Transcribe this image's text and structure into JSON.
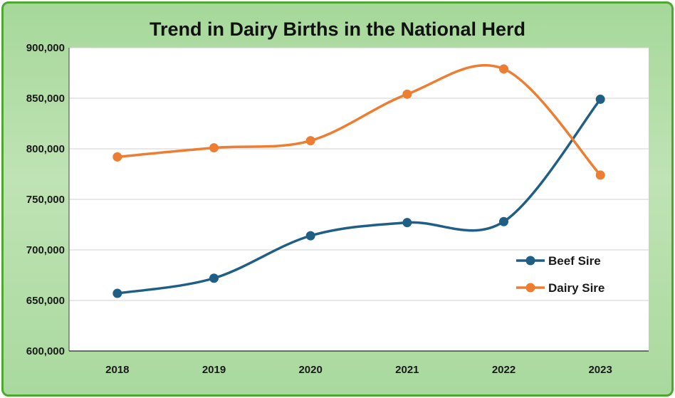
{
  "chart_data": {
    "type": "line",
    "title": "Trend in Dairy Births in the National Herd",
    "xlabel": "",
    "ylabel": "",
    "categories": [
      "2018",
      "2019",
      "2020",
      "2021",
      "2022",
      "2023"
    ],
    "ylim": [
      600000,
      900000
    ],
    "yticks": [
      600000,
      650000,
      700000,
      750000,
      800000,
      850000,
      900000
    ],
    "ytick_labels": [
      "600,000",
      "650,000",
      "700,000",
      "750,000",
      "800,000",
      "850,000",
      "900,000"
    ],
    "grid": true,
    "smooth": true,
    "legend_position": "lower-right",
    "series": [
      {
        "name": "Beef Sire",
        "color": "#1f5f86",
        "values": [
          657000,
          672000,
          714000,
          727000,
          728000,
          849000
        ]
      },
      {
        "name": "Dairy Sire",
        "color": "#ed7d31",
        "values": [
          792000,
          801000,
          808000,
          854000,
          879000,
          774000
        ]
      }
    ]
  }
}
